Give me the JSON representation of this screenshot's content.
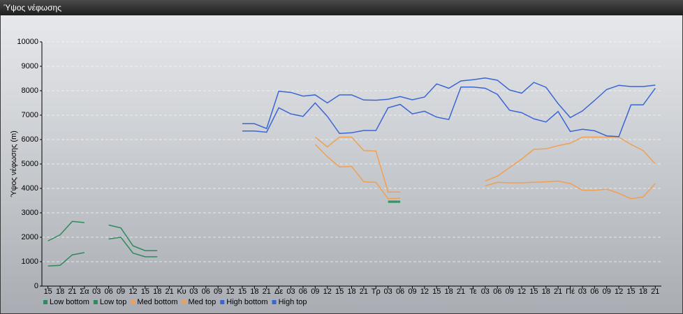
{
  "chart_data": {
    "type": "line",
    "title": "Ύψος νέφωσης",
    "y_label": "Ύψος νέφωσης (m)",
    "categories": [
      "15",
      "18",
      "21",
      "Σα",
      "03",
      "06",
      "09",
      "12",
      "15",
      "18",
      "21",
      "Κυ",
      "03",
      "06",
      "09",
      "12",
      "15",
      "18",
      "21",
      "Δε",
      "03",
      "06",
      "09",
      "12",
      "15",
      "18",
      "21",
      "Τρ",
      "03",
      "06",
      "09",
      "12",
      "15",
      "18",
      "21",
      "Τε",
      "03",
      "06",
      "09",
      "12",
      "15",
      "18",
      "21",
      "Πέ",
      "03",
      "06",
      "09",
      "12",
      "15",
      "18",
      "21"
    ],
    "ylim": [
      0,
      10000
    ],
    "yticks": [
      0,
      1000,
      2000,
      3000,
      4000,
      5000,
      6000,
      7000,
      8000,
      9000,
      10000
    ],
    "grid": true,
    "legend": "bottom",
    "series": [
      {
        "name": "Low bottom",
        "color": "#2f8a5c",
        "values": [
          820,
          850,
          1280,
          1370,
          null,
          1930,
          2000,
          1350,
          1200,
          1200,
          null,
          null,
          null,
          null,
          null,
          null,
          null,
          null,
          null,
          null,
          null,
          null,
          null,
          null,
          null,
          null,
          null,
          null,
          3430,
          3430,
          null,
          null,
          null,
          null,
          null,
          null,
          null,
          null,
          null,
          null,
          null,
          null,
          null,
          null,
          null,
          null,
          null,
          null,
          null,
          null,
          null
        ]
      },
      {
        "name": "Low top",
        "color": "#2f8a5c",
        "values": [
          1850,
          2100,
          2650,
          2600,
          null,
          2500,
          2380,
          1650,
          1450,
          1450,
          null,
          null,
          null,
          null,
          null,
          null,
          null,
          null,
          null,
          null,
          null,
          null,
          null,
          null,
          null,
          null,
          null,
          null,
          3480,
          3480,
          null,
          null,
          null,
          null,
          null,
          null,
          null,
          null,
          null,
          null,
          null,
          null,
          null,
          null,
          null,
          null,
          null,
          null,
          null,
          null,
          null
        ]
      },
      {
        "name": "Med bottom",
        "color": "#f0a050",
        "values": [
          null,
          null,
          null,
          null,
          null,
          null,
          null,
          null,
          null,
          null,
          null,
          null,
          null,
          null,
          null,
          null,
          null,
          null,
          null,
          null,
          null,
          null,
          5800,
          5300,
          4880,
          4900,
          4270,
          4250,
          3580,
          3600,
          null,
          null,
          null,
          null,
          null,
          null,
          4100,
          4250,
          4230,
          4230,
          4250,
          4270,
          4300,
          4200,
          3930,
          3920,
          3970,
          3800,
          3580,
          3650,
          4200
        ]
      },
      {
        "name": "Med top",
        "color": "#f0a050",
        "values": [
          null,
          null,
          null,
          null,
          null,
          null,
          null,
          null,
          null,
          null,
          null,
          null,
          null,
          null,
          null,
          null,
          null,
          null,
          null,
          null,
          null,
          null,
          6100,
          5700,
          6100,
          6100,
          5550,
          5530,
          3850,
          3850,
          null,
          null,
          null,
          null,
          null,
          null,
          4300,
          4500,
          4850,
          5200,
          5600,
          5620,
          5750,
          5850,
          6100,
          6100,
          6100,
          6100,
          5800,
          5550,
          5000
        ]
      },
      {
        "name": "High bottom",
        "color": "#3a66d4",
        "values": [
          null,
          null,
          null,
          null,
          null,
          null,
          null,
          null,
          null,
          null,
          null,
          null,
          null,
          null,
          null,
          null,
          6350,
          6350,
          6300,
          7300,
          7050,
          6950,
          7500,
          6950,
          6250,
          6280,
          6370,
          6370,
          7300,
          7440,
          7050,
          7160,
          6920,
          6820,
          8150,
          8150,
          8100,
          7850,
          7200,
          7100,
          6850,
          6720,
          7150,
          6330,
          6420,
          6360,
          6150,
          6120,
          7420,
          7420,
          8100
        ]
      },
      {
        "name": "High top",
        "color": "#3a66d4",
        "values": [
          null,
          null,
          null,
          null,
          null,
          null,
          null,
          null,
          null,
          null,
          null,
          null,
          null,
          null,
          null,
          null,
          6650,
          6650,
          6450,
          7980,
          7930,
          7780,
          7830,
          7500,
          7830,
          7830,
          7620,
          7610,
          7650,
          7760,
          7630,
          7740,
          8280,
          8100,
          8400,
          8450,
          8520,
          8430,
          8030,
          7900,
          8340,
          8140,
          7470,
          6900,
          7170,
          7600,
          8050,
          8220,
          8170,
          8170,
          8230
        ]
      }
    ]
  }
}
